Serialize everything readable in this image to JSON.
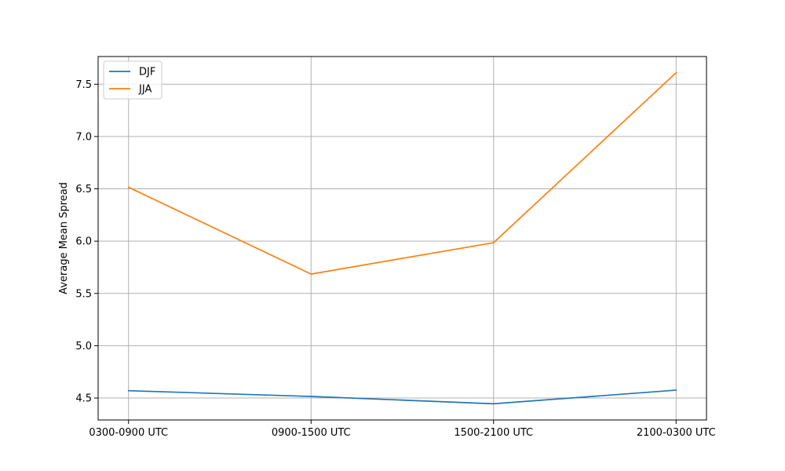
{
  "chart_data": {
    "type": "line",
    "title": "",
    "xlabel": "",
    "ylabel": "Average Mean Spread",
    "categories": [
      "0300-0900 UTC",
      "0900-1500 UTC",
      "1500-2100 UTC",
      "2100-0300 UTC"
    ],
    "series": [
      {
        "name": "DJF",
        "color": "#1f77b4",
        "values": [
          4.57,
          4.515,
          4.445,
          4.575
        ]
      },
      {
        "name": "JJA",
        "color": "#ff7f0e",
        "values": [
          6.515,
          5.685,
          5.985,
          7.61
        ]
      }
    ],
    "ylim": [
      4.29,
      7.765
    ],
    "yticks": [
      4.5,
      5.0,
      5.5,
      6.0,
      6.5,
      7.0,
      7.5
    ],
    "ytick_labels": [
      "4.5",
      "5.0",
      "5.5",
      "6.0",
      "6.5",
      "7.0",
      "7.5"
    ],
    "grid": true,
    "legend_position": "upper-left"
  }
}
